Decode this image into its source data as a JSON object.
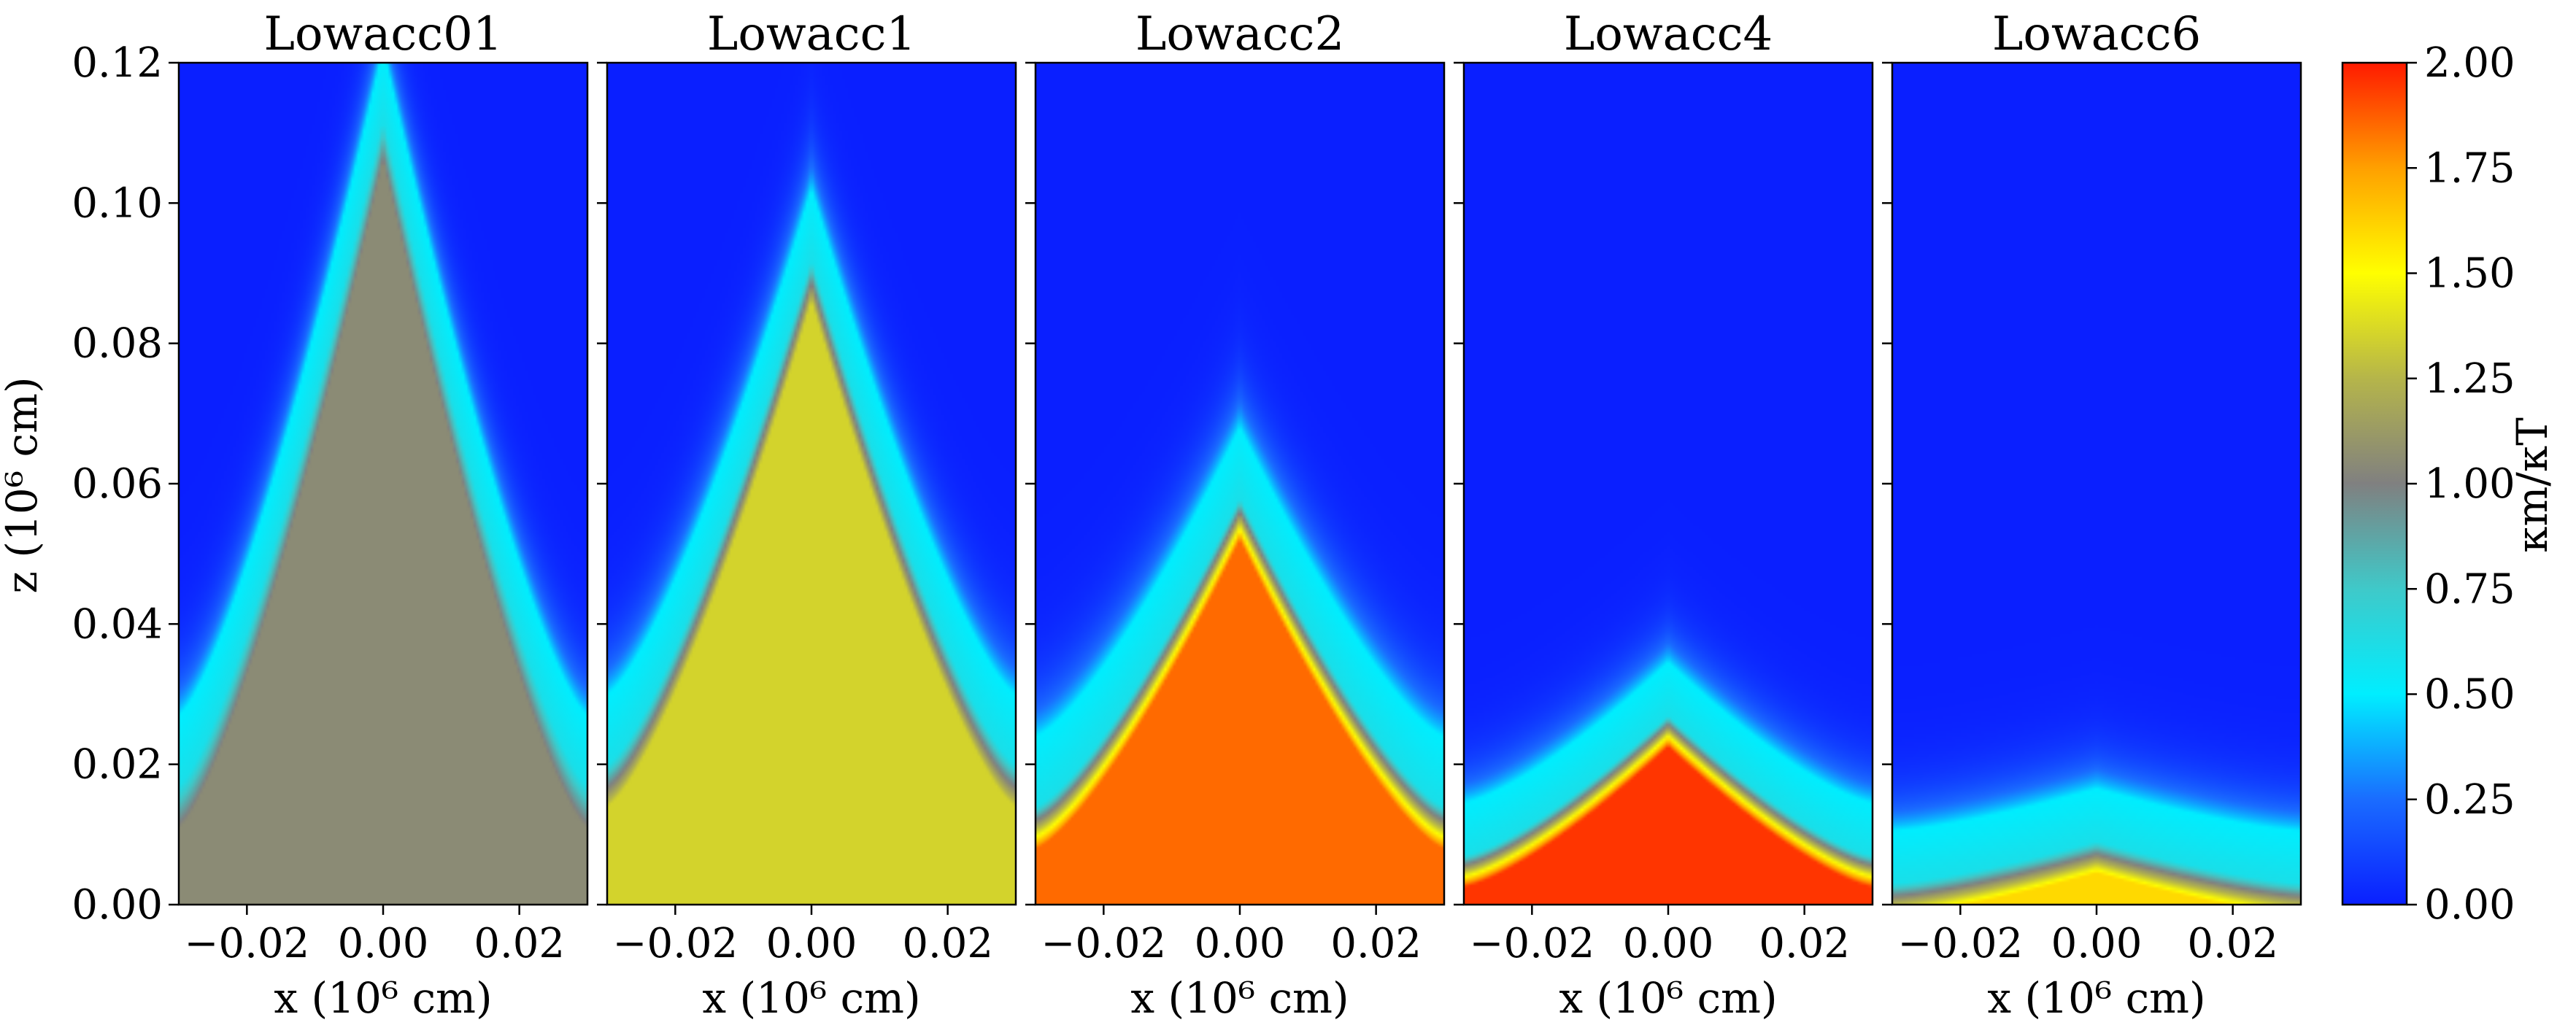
{
  "figure": {
    "ylabel": "z (10⁶ cm)",
    "xlabel": "x (10⁶ cm)",
    "colorbar_label": "κm/κT"
  },
  "chart_data": {
    "type": "heatmap",
    "panels": [
      {
        "title": "Lowacc01",
        "peak_z": 0.112,
        "edge_z": 0.017,
        "ratio_core": 1.05,
        "ratio_front": 0.5,
        "front_width": 0.004
      },
      {
        "title": "Lowacc1",
        "peak_z": 0.092,
        "edge_z": 0.02,
        "ratio_core": 1.35,
        "ratio_front": 0.5,
        "front_width": 0.004
      },
      {
        "title": "Lowacc2",
        "peak_z": 0.058,
        "edge_z": 0.014,
        "ratio_core": 1.85,
        "ratio_front": 0.5,
        "front_width": 0.004
      },
      {
        "title": "Lowacc4",
        "peak_z": 0.027,
        "edge_z": 0.007,
        "ratio_core": 1.95,
        "ratio_front": 0.5,
        "front_width": 0.003
      },
      {
        "title": "Lowacc6",
        "peak_z": 0.009,
        "edge_z": 0.003,
        "ratio_core": 1.6,
        "ratio_front": 0.5,
        "front_width": 0.003
      }
    ],
    "xlim": [
      -0.03,
      0.03
    ],
    "ylim": [
      0.0,
      0.12
    ],
    "xticks": [
      -0.02,
      0.0,
      0.02
    ],
    "xtick_labels": [
      "−0.02",
      "0.00",
      "0.02"
    ],
    "yticks": [
      0.0,
      0.02,
      0.04,
      0.06,
      0.08,
      0.1,
      0.12
    ],
    "ytick_labels": [
      "0.00",
      "0.02",
      "0.04",
      "0.06",
      "0.08",
      "0.10",
      "0.12"
    ],
    "colorbar": {
      "range": [
        0.0,
        2.0
      ],
      "ticks": [
        0.0,
        0.25,
        0.5,
        0.75,
        1.0,
        1.25,
        1.5,
        1.75,
        2.0
      ],
      "tick_labels": [
        "0.00",
        "0.25",
        "0.50",
        "0.75",
        "1.00",
        "1.25",
        "1.50",
        "1.75",
        "2.00"
      ],
      "colors": [
        {
          "v": 0.0,
          "color": "#0a1fff"
        },
        {
          "v": 0.25,
          "color": "#1a6cff"
        },
        {
          "v": 0.5,
          "color": "#00eeff"
        },
        {
          "v": 0.75,
          "color": "#3fc9c9"
        },
        {
          "v": 1.0,
          "color": "#808080"
        },
        {
          "v": 1.25,
          "color": "#b5b54a"
        },
        {
          "v": 1.5,
          "color": "#ffff00"
        },
        {
          "v": 1.75,
          "color": "#ffa000"
        },
        {
          "v": 2.0,
          "color": "#ff1a00"
        }
      ]
    }
  }
}
